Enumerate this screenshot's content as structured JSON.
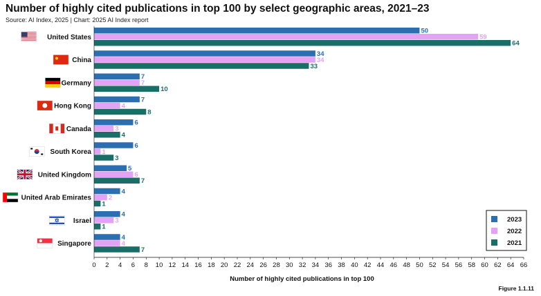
{
  "header": {
    "title": "Number of highly cited publications in top 100 by select geographic areas, 2021–23",
    "source": "Source: AI Index, 2025 | Chart: 2025 AI Index report",
    "figure": "Figure 1.1.11"
  },
  "chart_data": {
    "type": "bar",
    "orientation": "horizontal",
    "categories": [
      "United States",
      "China",
      "Germany",
      "Hong Kong",
      "Canada",
      "South Korea",
      "United Kingdom",
      "United Arab Emirates",
      "Israel",
      "Singapore"
    ],
    "series": [
      {
        "name": "2023",
        "color": "#2b6fb0",
        "values": [
          50,
          34,
          7,
          7,
          6,
          6,
          5,
          4,
          4,
          4
        ]
      },
      {
        "name": "2022",
        "color": "#e3a3f4",
        "values": [
          59,
          34,
          7,
          4,
          3,
          1,
          6,
          2,
          3,
          4
        ]
      },
      {
        "name": "2021",
        "color": "#1b6d67",
        "values": [
          64,
          33,
          10,
          8,
          4,
          3,
          7,
          1,
          1,
          7
        ]
      }
    ],
    "xlabel": "Number of highly cited publications in top 100",
    "xlim": [
      0,
      66
    ],
    "xticks": [
      0,
      2,
      4,
      6,
      8,
      10,
      12,
      14,
      16,
      18,
      20,
      22,
      24,
      26,
      28,
      30,
      32,
      34,
      36,
      38,
      40,
      42,
      44,
      46,
      48,
      50,
      52,
      54,
      56,
      58,
      60,
      62,
      64,
      66
    ],
    "legend_position": "bottom-right",
    "grid": false,
    "flag_icons": [
      "us-flag-icon",
      "china-flag-icon",
      "germany-flag-icon",
      "hong-kong-flag-icon",
      "canada-flag-icon",
      "south-korea-flag-icon",
      "united-kingdom-flag-icon",
      "uae-flag-icon",
      "israel-flag-icon",
      "singapore-flag-icon"
    ]
  }
}
